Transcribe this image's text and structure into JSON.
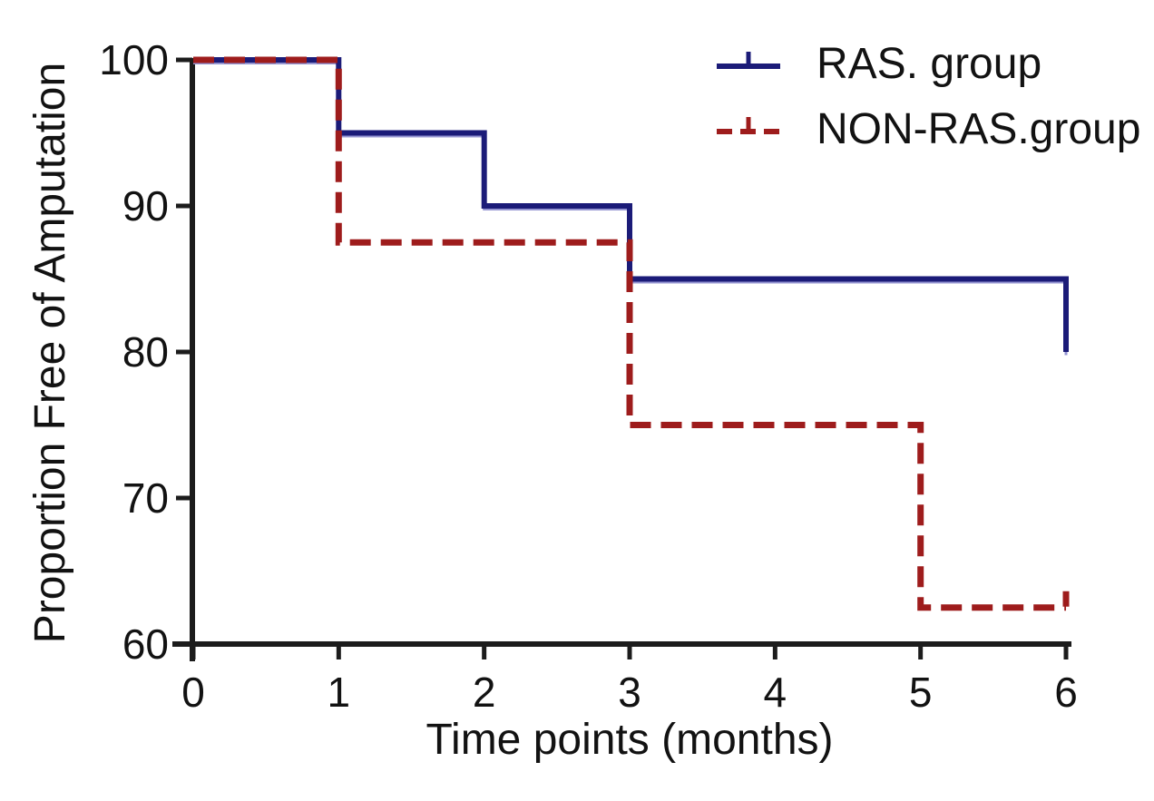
{
  "chart_data": {
    "type": "line",
    "subtype": "step-survival",
    "title": "",
    "xlabel": "Time points (months)",
    "ylabel": "Proportion Free of Amputation",
    "xlim": [
      0,
      6
    ],
    "ylim": [
      60,
      100
    ],
    "xticks": [
      0,
      1,
      2,
      3,
      4,
      5,
      6
    ],
    "yticks": [
      100,
      90,
      80,
      70,
      60
    ],
    "grid": false,
    "legend_position": "top-right",
    "series": [
      {
        "name": "RAS. group",
        "color": "#1b1b78",
        "style": "solid",
        "points": [
          [
            0,
            100
          ],
          [
            1,
            100
          ],
          [
            1,
            95
          ],
          [
            2,
            95
          ],
          [
            2,
            90
          ],
          [
            3,
            90
          ],
          [
            3,
            85
          ],
          [
            6,
            85
          ],
          [
            6,
            80
          ]
        ],
        "censor_ticks": []
      },
      {
        "name": "NON-RAS.group",
        "color": "#9e1c1c",
        "style": "dashed",
        "points": [
          [
            0,
            100
          ],
          [
            1,
            100
          ],
          [
            1,
            87.5
          ],
          [
            3,
            87.5
          ],
          [
            3,
            75
          ],
          [
            5,
            75
          ],
          [
            5,
            62.5
          ],
          [
            6,
            62.5
          ]
        ],
        "censor_ticks": [
          [
            6,
            62.5
          ]
        ]
      }
    ]
  }
}
